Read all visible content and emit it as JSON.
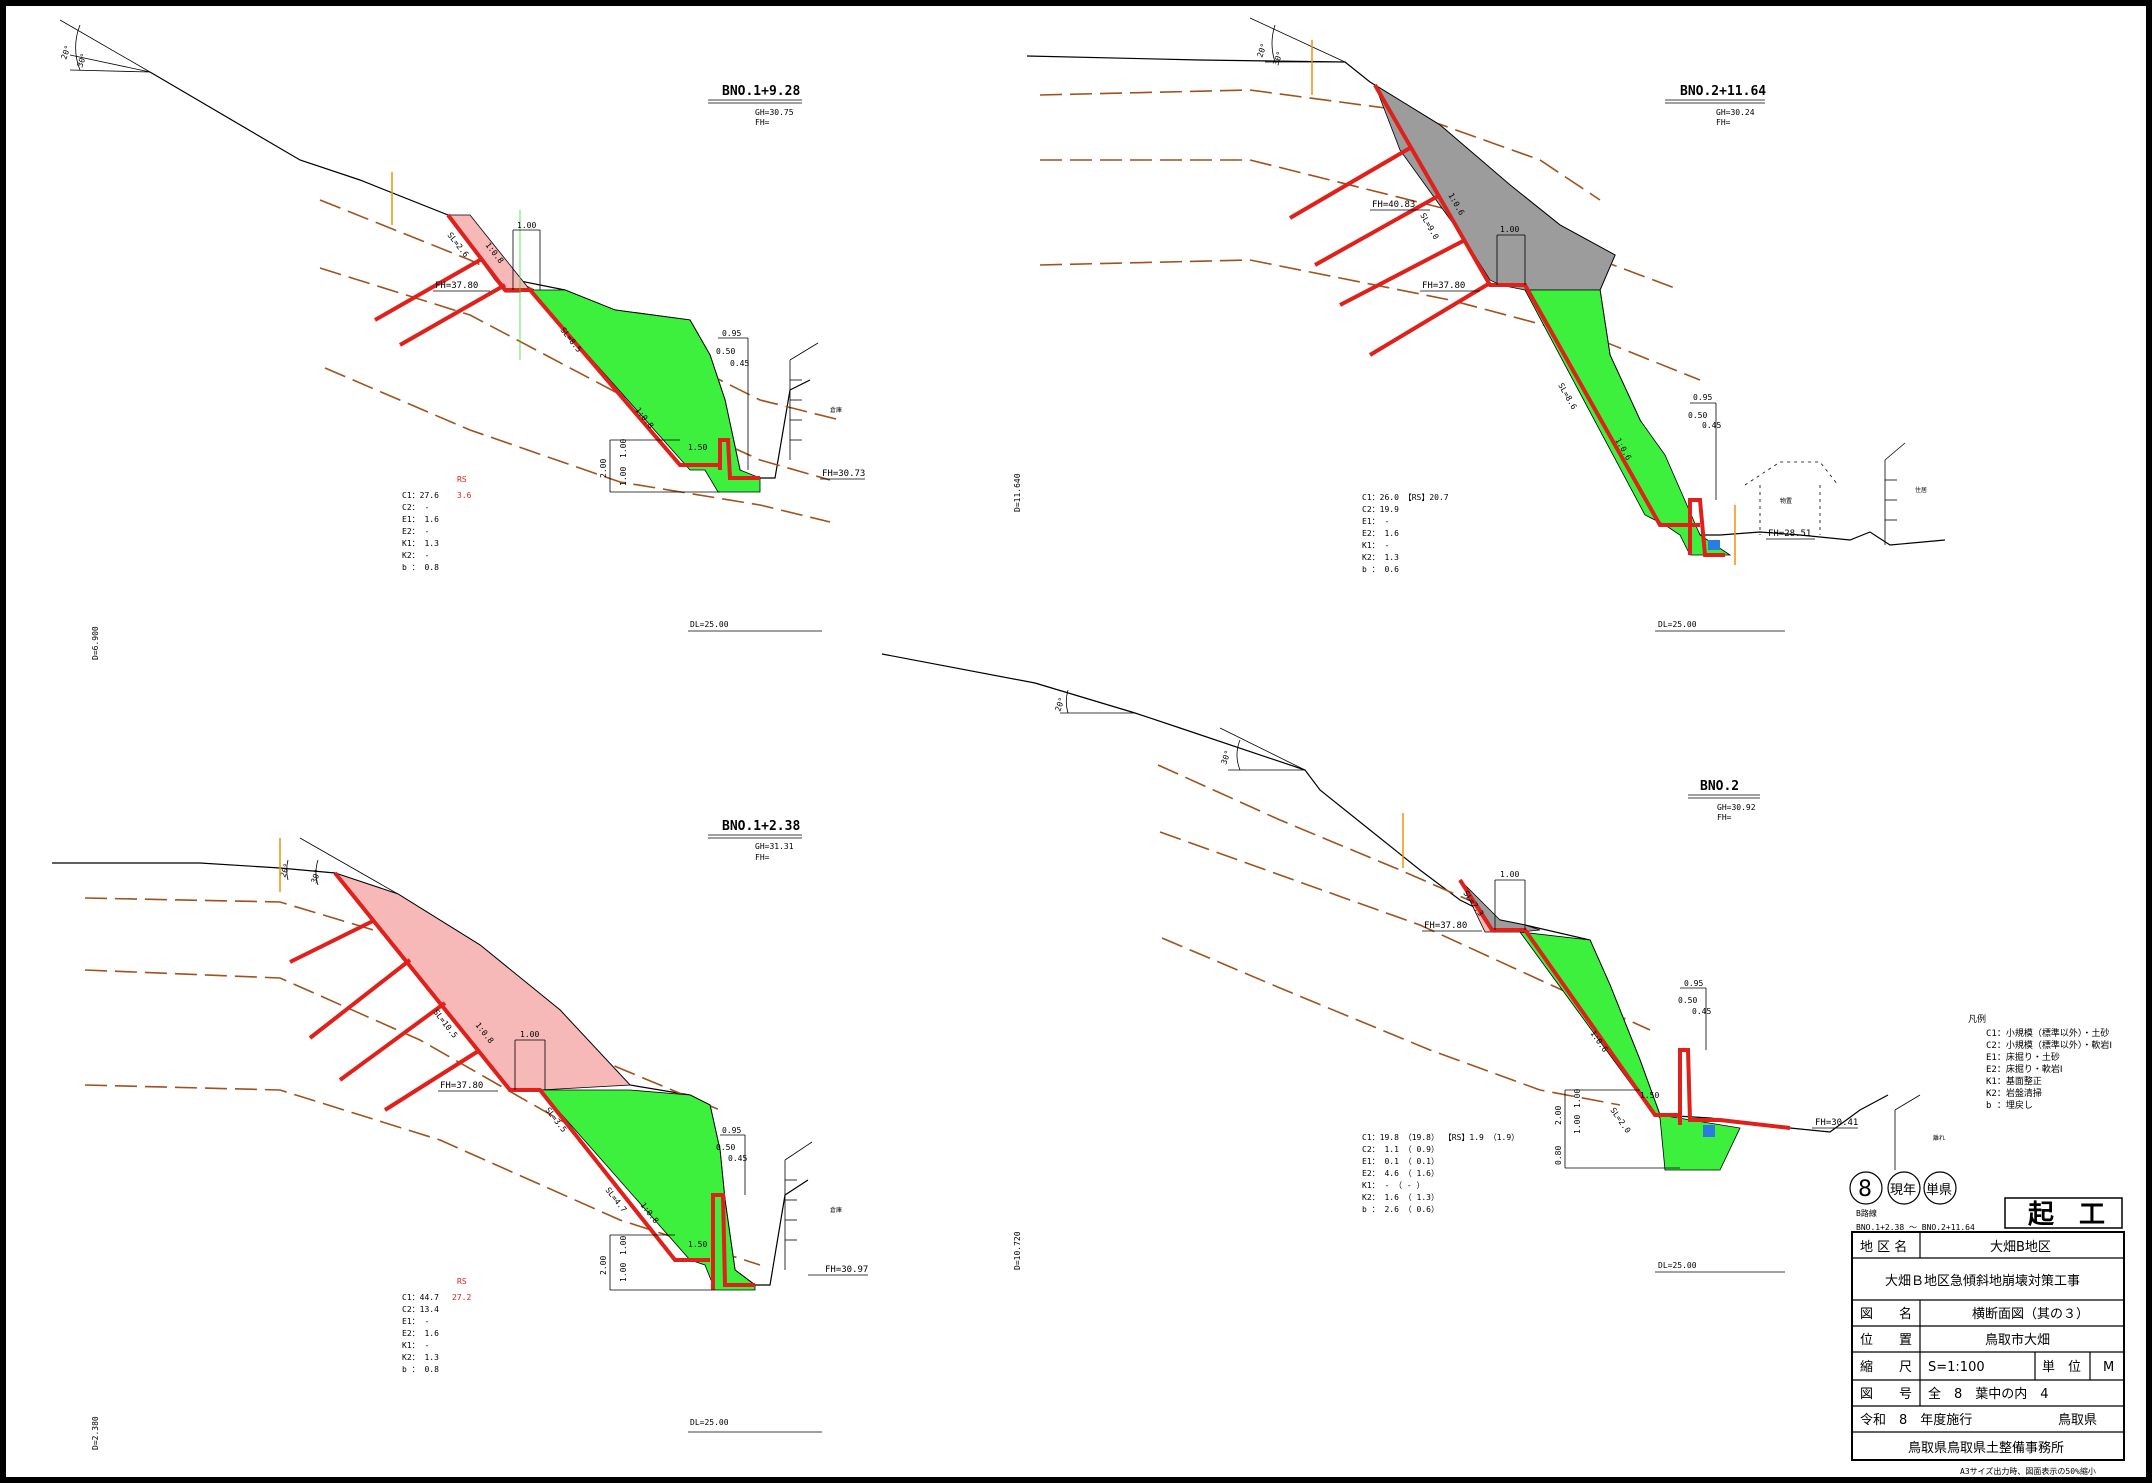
{
  "panels": {
    "p1": {
      "title": "BNO.1+9.28",
      "gh": "GH=30.75",
      "fh": "FH=",
      "fh_left": "FH=37.80",
      "fh_right": "FH=30.73",
      "dims": [
        "1.00",
        "0.95",
        "0.50",
        "0.45",
        "1.50",
        "2.00",
        "1.00",
        "1.00"
      ],
      "slopes": [
        "SL=2.6",
        "1:0.8",
        "SL=8.5",
        "1:0.8"
      ],
      "legend_rs": "RS",
      "legend": [
        "C1：27.6",
        "C2：  -",
        "E1：  1.6",
        "E2：  -",
        "K1：  1.3",
        "K2：  -",
        "b ：  0.8"
      ],
      "rs_value": "3.6",
      "dl": "DL=25.00",
      "datum": "D=6.900",
      "house": "倉庫"
    },
    "p2": {
      "title": "BNO.2+11.64",
      "gh": "GH=30.24",
      "fh": "FH=",
      "fh_left": "FH=40.83",
      "fh_mid": "FH=37.80",
      "fh_right": "FH=28.51",
      "dims": [
        "1.00",
        "0.95",
        "0.50",
        "0.45"
      ],
      "slopes": [
        "SL=9.0",
        "1:0.6",
        "SL=8.6",
        "1:0.6"
      ],
      "legend": [
        "C1：26.0 【RS】20.7",
        "C2：19.9",
        "E1：  -",
        "E2：  1.6",
        "K1：  -",
        "K2：  1.3",
        "b ：  0.6"
      ],
      "dl": "DL=25.00",
      "datum": "D=11.640",
      "house1": "物置",
      "house2": "住居"
    },
    "p3": {
      "title": "BNO.1+2.38",
      "gh": "GH=31.31",
      "fh": "FH=",
      "fh_left": "FH=37.80",
      "fh_right": "FH=30.97",
      "dims": [
        "1.00",
        "0.95",
        "0.50",
        "0.45",
        "1.50",
        "2.00",
        "1.00",
        "1.00"
      ],
      "slopes": [
        "SL=10.5",
        "1:0.8",
        "SL=3.5",
        "SL=4.7",
        "1:0.8"
      ],
      "legend_rs": "RS",
      "legend": [
        "C1：44.7",
        "C2：13.4",
        "E1：  -",
        "E2：  1.6",
        "K1：  -",
        "K2：  1.3",
        "b ：  0.8"
      ],
      "rs_value": "27.2",
      "dl": "DL=25.00",
      "datum": "D=2.380",
      "house": "倉庫"
    },
    "p4": {
      "title": "BNO.2",
      "gh": "GH=30.92",
      "fh": "FH=",
      "fh_left": "FH=37.80",
      "fh_right": "FH=30.41",
      "dims": [
        "1.00",
        "0.95",
        "0.50",
        "0.45",
        "1.50",
        "2.00",
        "1.00",
        "1.00",
        "0.80"
      ],
      "slopes": [
        "SL=2.3",
        "1:0.6",
        "SL=2.0"
      ],
      "legend": [
        "C1：19.8 （19.8） 【RS】1.9 （1.9）",
        "C2：  1.1 （ 0.9）",
        "E1：  0.1 （ 0.1）",
        "E2：  4.6 （ 1.6）",
        "K1：  - （  - ）",
        "K2：  1.6 （ 1.3）",
        "b ：  2.6 （ 0.6）"
      ],
      "dl": "DL=25.00",
      "datum": "D=10.720",
      "house": "離れ"
    }
  },
  "key": {
    "title": "凡例",
    "items": [
      "C1：小規模（標準以外）・土砂",
      "C2：小規模（標準以外）・軟岩Ⅰ",
      "E1：床掘り・土砂",
      "E2：床掘り・軟岩Ⅰ",
      "K1：基面整正",
      "K2：岩盤清掃",
      "b ：埋戻し"
    ]
  },
  "stamps": {
    "s1": "8",
    "s2": "現年",
    "s3": "単県"
  },
  "route": {
    "line": "B路線",
    "range": "BNO.1+2.38 ～ BNO.2+11.64"
  },
  "kiko": "起 工",
  "titleblock": {
    "area_label": "地 区 名",
    "area_value": "大畑B地区",
    "project": "大畑Ｂ地区急傾斜地崩壊対策工事",
    "drawing_label": "図　　名",
    "drawing_value": "横断面図（其の３）",
    "location_label": "位　　置",
    "location_value": "鳥取市大畑",
    "scale_label": "縮　　尺",
    "scale_value": "S=1:100",
    "unit_label": "単　位",
    "unit_value": "M",
    "number_label": "図　　号",
    "number_value": "全　8　葉中の内　4",
    "year": "令和　8　年度施行",
    "pref": "鳥取県",
    "office": "鳥取県鳥取県土整備事務所"
  },
  "footnote": "A3サイズ出力時、図面表示の50%縮小",
  "angles": [
    "20°",
    "30°"
  ]
}
